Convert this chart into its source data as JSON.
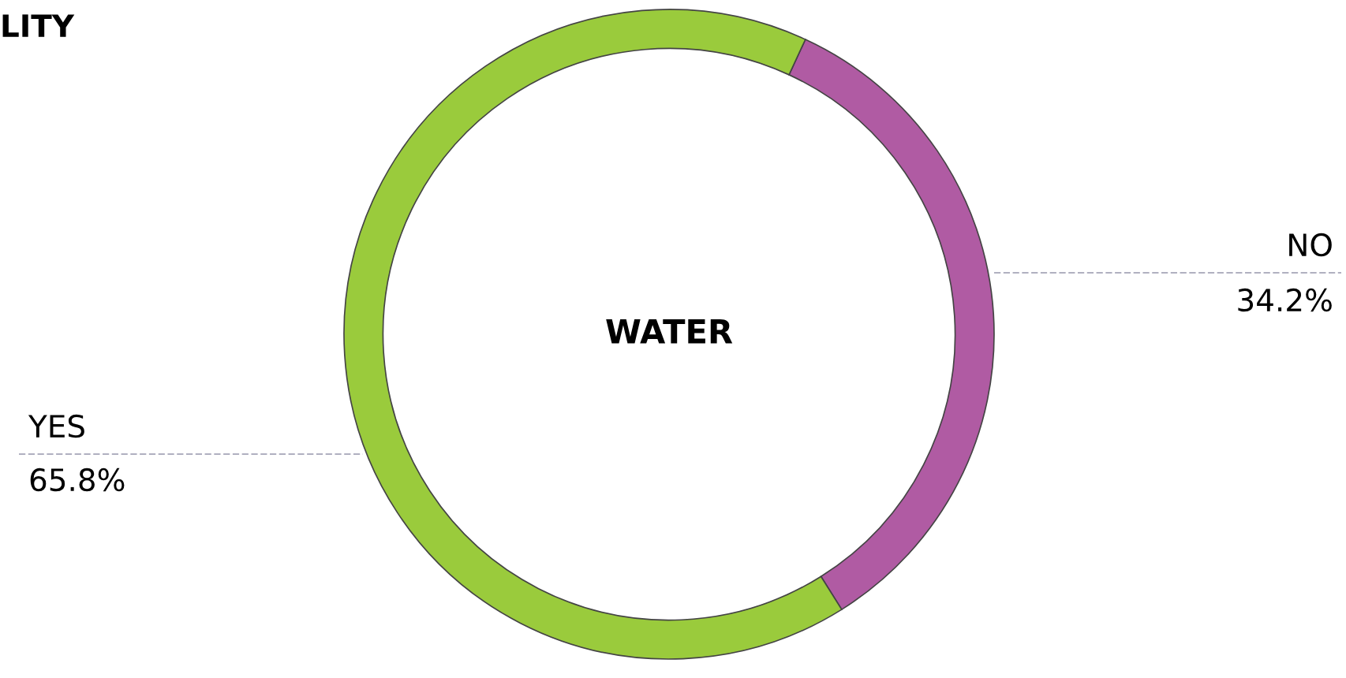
{
  "chart_data": {
    "type": "donut",
    "title": "LITY",
    "annotations": [
      "WATER"
    ],
    "categories": [
      "NO",
      "YES"
    ],
    "values": [
      34.2,
      65.8
    ],
    "colors": [
      "#b05ba3",
      "#9acb3c"
    ],
    "value_labels": [
      "34.2%",
      "65.8%"
    ],
    "legend": false
  }
}
